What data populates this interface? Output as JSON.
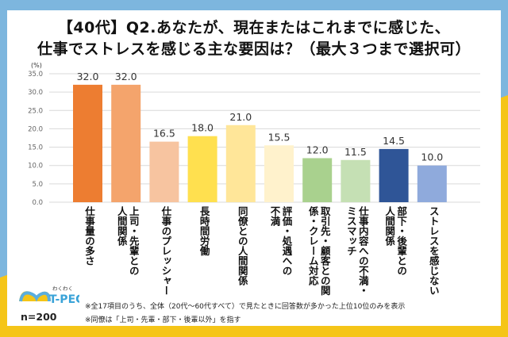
{
  "title": {
    "line1": "【40代】Q2.あなたが、現在またはこれまでに感じた、",
    "line2": "仕事でストレスを感じる主な要因は？（最大３つまで選択可）"
  },
  "chart_data": {
    "type": "bar",
    "title": "【40代】Q2.あなたが、現在またはこれまでに感じた、仕事でストレスを感じる主な要因は？（最大３つまで選択可）",
    "xlabel": "",
    "ylabel": "(%)",
    "ylim": [
      0,
      35
    ],
    "yticks": [
      "0.0",
      "5.0",
      "10.0",
      "15.0",
      "20.0",
      "25.0",
      "30.0",
      "35.0"
    ],
    "grid": true,
    "categories": [
      "仕事量の多さ",
      "上司・先輩との\n人間関係",
      "仕事のプレッシャー",
      "長時間労働",
      "同僚との人間関係",
      "評価・処遇への\n不満",
      "取引先・顧客との関\n係・クレーム対応",
      "仕事内容への不満・\nミスマッチ",
      "部下・後輩との\n人間関係",
      "ストレスを感じない"
    ],
    "values": [
      32.0,
      32.0,
      16.5,
      18.0,
      21.0,
      15.5,
      12.0,
      11.5,
      14.5,
      10.0
    ],
    "value_labels": [
      "32.0",
      "32.0",
      "16.5",
      "18.0",
      "21.0",
      "15.5",
      "12.0",
      "11.5",
      "14.5",
      "10.0"
    ],
    "colors": [
      "#ed7d31",
      "#f4a46c",
      "#f7c4a0",
      "#ffe04f",
      "#ffe699",
      "#fff2cc",
      "#a9d18e",
      "#c5e0b4",
      "#2f5597",
      "#8faadc"
    ]
  },
  "footer": {
    "logo_text": "T-PEC",
    "logo_subtext": "わくわく",
    "sample_size": "n=200",
    "note1": "※全17項目のうち、全体（20代～60代すべて）で見たときに回答数が多かった上位10位のみを表示",
    "note2": "※同僚は「上司・先輩・部下・後輩以外」を指す"
  },
  "theme": {
    "frame_top": "#7db6de",
    "frame_bottom": "#f5c518"
  }
}
